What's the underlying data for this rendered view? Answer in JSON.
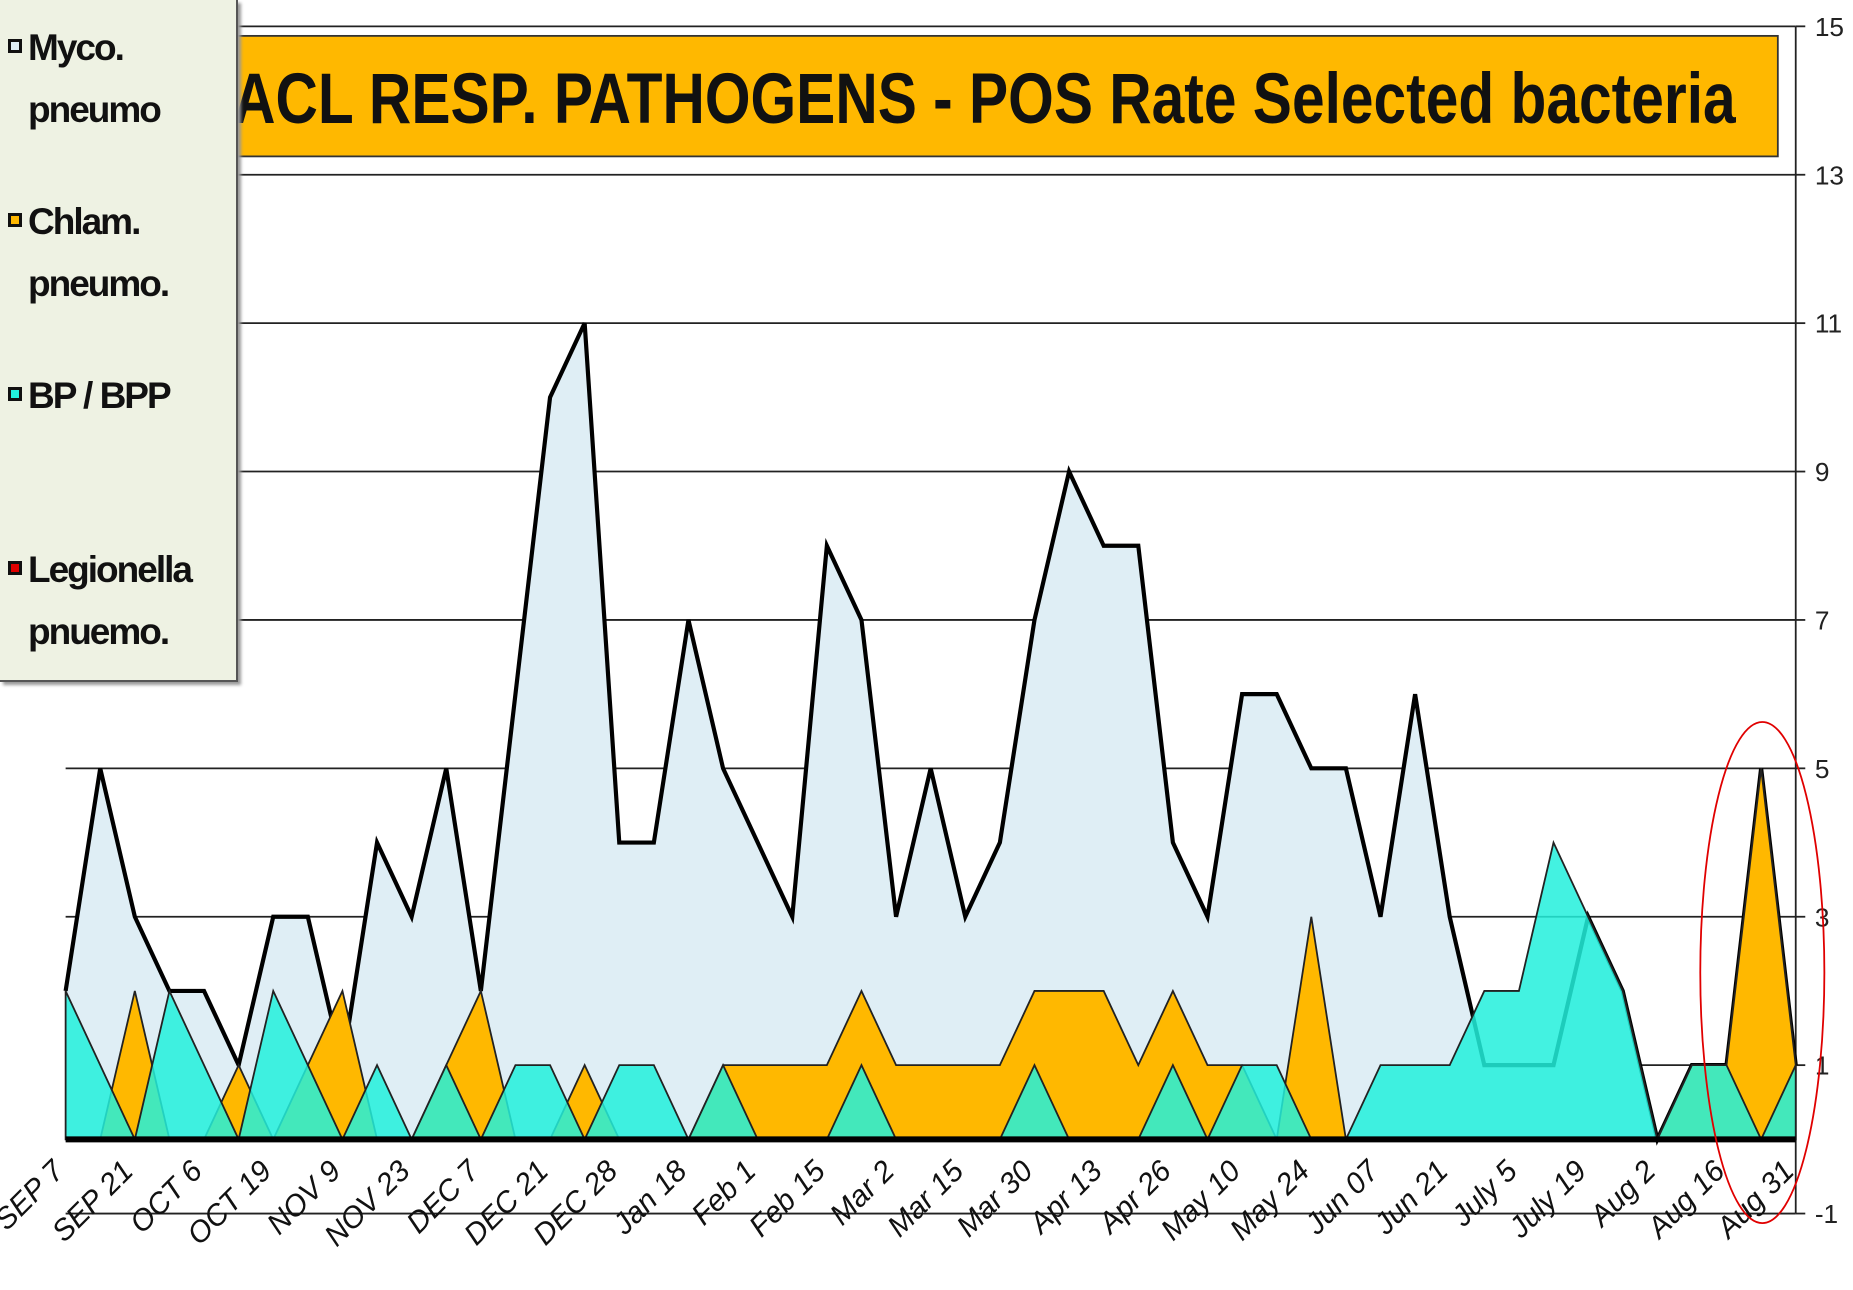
{
  "chart_data": {
    "type": "area",
    "title": "ACL RESP. PATHOGENS -  POS Rate Selected bacteria",
    "categories": [
      "SEP 7",
      null,
      "SEP 21",
      null,
      "OCT 6",
      null,
      "OCT 19",
      null,
      "NOV 9",
      null,
      "NOV 23",
      null,
      "DEC 7",
      null,
      "DEC 21",
      null,
      "DEC 28",
      null,
      "Jan 18",
      null,
      "Feb 1",
      null,
      "Feb 15",
      null,
      "Mar 2",
      null,
      "Mar 15",
      null,
      "Mar 30",
      null,
      "Apr 13",
      null,
      "Apr 26",
      null,
      "May 10",
      null,
      "May 24",
      null,
      "Jun 07",
      null,
      "Jun 21",
      null,
      "July 5",
      null,
      "July 19",
      null,
      "Aug 2",
      null,
      "Aug 16",
      null,
      "Aug 31"
    ],
    "series": [
      {
        "name": "Myco. pneumo",
        "color": "#dfeef5",
        "values": [
          2,
          5,
          3,
          2,
          2,
          1,
          3,
          3,
          1,
          4,
          3,
          5,
          2,
          6,
          10,
          11,
          4,
          4,
          7,
          5,
          4,
          3,
          8,
          7,
          3,
          5,
          3,
          4,
          7,
          9,
          8,
          8,
          4,
          3,
          6,
          6,
          5,
          5,
          3,
          6,
          3,
          1,
          1,
          1,
          3,
          2,
          0,
          1,
          1,
          5,
          1
        ]
      },
      {
        "name": "Chlam. pneumo.",
        "color": "#ffb800",
        "values": [
          0,
          0,
          2,
          0,
          0,
          1,
          0,
          1,
          2,
          0,
          0,
          1,
          2,
          0,
          0,
          1,
          0,
          0,
          0,
          1,
          1,
          1,
          1,
          2,
          1,
          1,
          1,
          1,
          2,
          2,
          2,
          1,
          2,
          1,
          1,
          0,
          3,
          0,
          0,
          0,
          0,
          0,
          0,
          0,
          0,
          0,
          0,
          1,
          1,
          5,
          1
        ]
      },
      {
        "name": "BP / BPP",
        "color": "#22f0dc",
        "values": [
          2,
          1,
          0,
          2,
          1,
          0,
          2,
          1,
          0,
          1,
          0,
          1,
          0,
          1,
          1,
          0,
          1,
          1,
          0,
          1,
          0,
          0,
          0,
          1,
          0,
          0,
          0,
          0,
          1,
          0,
          0,
          0,
          1,
          0,
          1,
          1,
          0,
          0,
          1,
          1,
          1,
          2,
          2,
          4,
          3,
          2,
          0,
          1,
          1,
          0,
          1
        ]
      },
      {
        "name": "Legionella pnuemo.",
        "color": "#e00000",
        "values": [
          0,
          0,
          0,
          0,
          0,
          0,
          0,
          0,
          0,
          0,
          0,
          0,
          0,
          0,
          0,
          0,
          0,
          0,
          0,
          0,
          0,
          0,
          0,
          0,
          0,
          0,
          0,
          0,
          0,
          0,
          0,
          0,
          0,
          0,
          0,
          0,
          0,
          0,
          0,
          0,
          0,
          0,
          0,
          0,
          0,
          0,
          0,
          0,
          0,
          0,
          0
        ]
      }
    ],
    "ylim": [
      -1,
      15
    ],
    "yticks": [
      15,
      13,
      11,
      9,
      7,
      5,
      3,
      1,
      -1
    ],
    "grid": true,
    "legend": "top-left"
  }
}
